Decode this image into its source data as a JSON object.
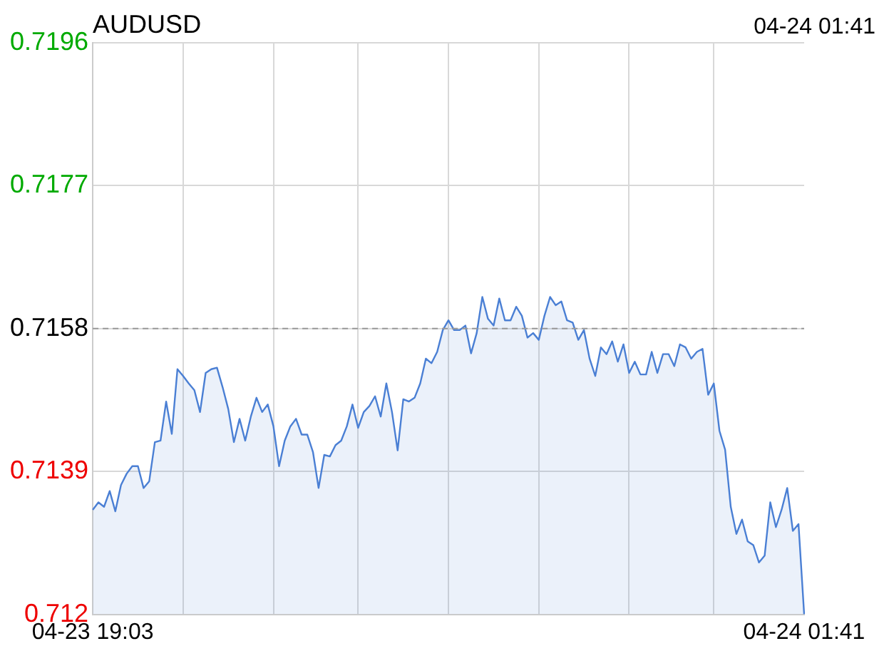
{
  "chart_data": {
    "type": "area",
    "title": "AUDUSD",
    "annotations": [
      "04-24 01:41"
    ],
    "categories": [
      "04-23 19:03",
      null,
      null,
      null,
      null,
      null,
      null,
      null,
      null,
      null,
      null,
      null,
      null,
      null,
      null,
      null,
      null,
      null,
      null,
      null,
      null,
      null,
      null,
      null,
      null,
      null,
      null,
      null,
      null,
      null,
      null,
      null,
      null,
      null,
      null,
      null,
      null,
      null,
      null,
      null,
      null,
      null,
      null,
      null,
      null,
      null,
      null,
      null,
      null,
      null,
      null,
      null,
      null,
      null,
      null,
      null,
      null,
      null,
      null,
      null,
      null,
      null,
      null,
      null,
      null,
      null,
      null,
      null,
      null,
      null,
      null,
      null,
      null,
      null,
      null,
      null,
      null,
      null,
      null,
      null,
      null,
      null,
      null,
      null,
      null,
      null,
      null,
      null,
      null,
      null,
      null,
      null,
      null,
      null,
      null,
      null,
      null,
      null,
      null,
      null,
      null,
      null,
      null,
      null,
      null,
      null,
      null,
      null,
      null,
      null,
      null,
      null,
      null,
      null,
      null,
      null,
      null,
      null,
      null,
      null,
      null,
      null,
      null,
      null,
      null,
      null,
      "04-24 01:41"
    ],
    "series": [
      {
        "color": "#4a7fd4",
        "values": [
          0.71339,
          0.71349,
          0.71343,
          0.71364,
          0.71337,
          0.71372,
          0.71387,
          0.71397,
          0.71397,
          0.71368,
          0.71377,
          0.71429,
          0.71431,
          0.71483,
          0.7144,
          0.71526,
          0.71517,
          0.71507,
          0.71498,
          0.71469,
          0.71521,
          0.71526,
          0.71528,
          0.71502,
          0.71473,
          0.71429,
          0.7146,
          0.71431,
          0.71463,
          0.71488,
          0.71469,
          0.71479,
          0.7145,
          0.71397,
          0.71431,
          0.7145,
          0.7146,
          0.71439,
          0.71439,
          0.71416,
          0.71368,
          0.71412,
          0.7141,
          0.71425,
          0.71431,
          0.7145,
          0.71479,
          0.71448,
          0.71469,
          0.71477,
          0.7149,
          0.71463,
          0.71507,
          0.71469,
          0.71418,
          0.71486,
          0.71483,
          0.71488,
          0.71507,
          0.7154,
          0.71534,
          0.71549,
          0.71578,
          0.71591,
          0.71578,
          0.71578,
          0.71584,
          0.71547,
          0.71574,
          0.71622,
          0.71593,
          0.71584,
          0.7162,
          0.71591,
          0.71591,
          0.71609,
          0.71597,
          0.71568,
          0.71574,
          0.71565,
          0.71597,
          0.71622,
          0.71611,
          0.71616,
          0.71591,
          0.71588,
          0.71565,
          0.71578,
          0.7154,
          0.71517,
          0.71555,
          0.71546,
          0.71563,
          0.71536,
          0.71559,
          0.71521,
          0.71536,
          0.71519,
          0.71519,
          0.71549,
          0.71521,
          0.71546,
          0.71546,
          0.7153,
          0.71559,
          0.71555,
          0.7154,
          0.71549,
          0.71553,
          0.71492,
          0.71507,
          0.71444,
          0.71419,
          0.71343,
          0.71307,
          0.71326,
          0.71297,
          0.71292,
          0.71269,
          0.71278,
          0.71349,
          0.71316,
          0.71339,
          0.71368,
          0.71311,
          0.7132,
          0.712
        ]
      }
    ],
    "ylim": [
      0.712,
      0.7196
    ],
    "yticks": [
      0.712,
      0.7139,
      0.7158,
      0.7177,
      0.7196
    ],
    "grid": true,
    "ref_lines": [
      {
        "axis": "y",
        "value": 0.7158,
        "color": "#999999",
        "line_style": "dashed"
      }
    ]
  }
}
